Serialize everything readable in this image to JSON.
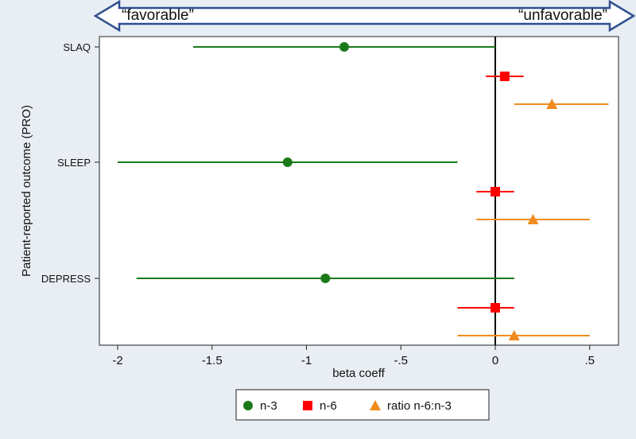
{
  "direction_arrow": {
    "left_label": "“favorable”",
    "right_label": "“unfavorable”"
  },
  "chart_data": {
    "type": "forest",
    "xlabel": "beta coeff",
    "ylabel": "Patient-reported outcome (PRO)",
    "xlim": [
      -2.1,
      0.55
    ],
    "x_ticks": [
      -2,
      -1.5,
      -1,
      -0.5,
      0,
      0.5
    ],
    "x_tick_labels": [
      "-2",
      "-1.5",
      "-1",
      "-.5",
      "0",
      ".5"
    ],
    "reference_line": 0,
    "categories": [
      "SLAQ",
      "SLEEP",
      "DEPRESS"
    ],
    "series": [
      {
        "name": "n-3",
        "color": "#1a7a1a",
        "marker": "circle",
        "points": [
          {
            "category": "SLAQ",
            "estimate": -0.8,
            "low": -1.6,
            "high": 0.0
          },
          {
            "category": "SLEEP",
            "estimate": -1.1,
            "low": -2.0,
            "high": -0.2
          },
          {
            "category": "DEPRESS",
            "estimate": -0.9,
            "low": -1.9,
            "high": 0.1
          }
        ]
      },
      {
        "name": "n-6",
        "color": "#ff0000",
        "marker": "square",
        "points": [
          {
            "category": "SLAQ",
            "estimate": 0.05,
            "low": -0.05,
            "high": 0.15
          },
          {
            "category": "SLEEP",
            "estimate": 0.0,
            "low": -0.1,
            "high": 0.1
          },
          {
            "category": "DEPRESS",
            "estimate": 0.0,
            "low": -0.2,
            "high": 0.1
          }
        ]
      },
      {
        "name": "ratio n-6:n-3",
        "color": "#f08c1e",
        "marker": "triangle",
        "points": [
          {
            "category": "SLAQ",
            "estimate": 0.3,
            "low": 0.1,
            "high": 0.6
          },
          {
            "category": "SLEEP",
            "estimate": 0.2,
            "low": -0.1,
            "high": 0.5
          },
          {
            "category": "DEPRESS",
            "estimate": 0.1,
            "low": -0.2,
            "high": 0.5
          }
        ]
      }
    ],
    "legend_position": "bottom",
    "grid": false
  }
}
